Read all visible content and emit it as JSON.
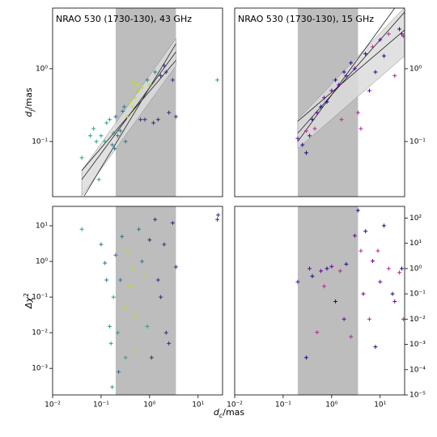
{
  "chart_data": [
    {
      "type": "scatter",
      "title": "NRAO 530 (1730-130), 43 GHz",
      "log_x": true,
      "log_y": true,
      "xlim": [
        0.01,
        32
      ],
      "ylim": [
        0.0175,
        6.8
      ],
      "yticks": [
        {
          "value": 0.1,
          "label": "10⁻¹"
        },
        {
          "value": 1,
          "label": "10⁰"
        }
      ],
      "ytick_side": "left",
      "ylabel": {
        "symbol": "d",
        "sub": "j",
        "unit": "/mas"
      },
      "shaded_x": [
        0.2,
        3.5
      ],
      "shade_color": "#bdbdbd",
      "band": {
        "x": [
          0.04,
          3.5
        ],
        "lower": [
          0.018,
          1.1
        ],
        "upper": [
          0.04,
          2.6
        ],
        "color": "#dcdcdc"
      },
      "fits": [
        {
          "x": [
            0.04,
            3.5
          ],
          "y": [
            0.04,
            1.3
          ]
        },
        {
          "x": [
            0.045,
            3.5
          ],
          "y": [
            0.018,
            2.2
          ]
        },
        {
          "x": [
            0.04,
            3.5
          ],
          "y": [
            0.03,
            1.7
          ]
        }
      ],
      "points": [
        {
          "color": "#3b2a7a",
          "x": [
            0.8,
            1.2,
            1.5,
            2.0,
            2.2,
            2.5,
            3.0,
            3.5,
            1.7,
            0.65
          ],
          "y": [
            0.2,
            0.18,
            0.2,
            1.1,
            0.9,
            0.25,
            0.7,
            0.22,
            0.8,
            0.2
          ]
        },
        {
          "color": "#2a788e",
          "x": [
            0.2,
            0.22,
            0.25,
            0.28,
            0.3,
            0.32,
            0.19,
            0.17,
            1.3,
            0.9
          ],
          "y": [
            0.22,
            0.12,
            0.14,
            0.26,
            0.3,
            0.1,
            0.08,
            0.09,
            0.9,
            0.7
          ]
        },
        {
          "color": "#22a884",
          "x": [
            0.04,
            0.06,
            0.07,
            0.08,
            0.09,
            0.1,
            0.12,
            0.13,
            0.15,
            0.18,
            25
          ],
          "y": [
            0.06,
            0.12,
            0.15,
            0.1,
            0.03,
            0.12,
            0.1,
            0.18,
            0.2,
            0.13,
            0.7
          ]
        },
        {
          "color": "#bddf26",
          "x": [
            0.35,
            0.4,
            0.45,
            0.5,
            0.55,
            0.6,
            0.7,
            1.0,
            0.45
          ],
          "y": [
            0.22,
            0.35,
            0.3,
            0.4,
            0.6,
            0.5,
            0.55,
            0.6,
            0.65
          ]
        }
      ]
    },
    {
      "type": "scatter",
      "title": "NRAO 530 (1730-130), 15 GHz",
      "log_x": true,
      "log_y": true,
      "xlim": [
        0.01,
        32
      ],
      "ylim": [
        0.0175,
        6.8
      ],
      "yticks": [
        {
          "value": 0.1,
          "label": "10⁻¹"
        },
        {
          "value": 1,
          "label": "10⁰"
        }
      ],
      "ytick_side": "right",
      "shaded_x": [
        0.2,
        3.5
      ],
      "shade_color": "#bdbdbd",
      "band": {
        "x": [
          0.2,
          32
        ],
        "lower": [
          0.08,
          1.5
        ],
        "upper": [
          0.2,
          7
        ],
        "color": "#dcdcdc"
      },
      "fits": [
        {
          "x": [
            0.2,
            32
          ],
          "y": [
            0.19,
            3.4
          ]
        },
        {
          "x": [
            0.2,
            20
          ],
          "y": [
            0.1,
            6.8
          ]
        },
        {
          "x": [
            0.2,
            32
          ],
          "y": [
            0.13,
            6
          ]
        }
      ],
      "points": [
        {
          "color": "#1b0c8a",
          "x": [
            0.25,
            0.3,
            0.4,
            0.6,
            0.8,
            1.2,
            1.8,
            2.5,
            5,
            8,
            12,
            25
          ],
          "y": [
            0.09,
            0.07,
            0.2,
            0.3,
            0.35,
            0.7,
            0.9,
            1.2,
            1.6,
            0.9,
            1.5,
            3.5
          ]
        },
        {
          "color": "#6a00a8",
          "x": [
            0.2,
            0.35,
            0.5,
            0.7,
            1.0,
            1.4,
            2.0,
            3.0,
            6,
            10,
            28
          ],
          "y": [
            0.11,
            0.12,
            0.25,
            0.4,
            0.5,
            0.6,
            0.8,
            1.0,
            0.5,
            2.5,
            3
          ]
        },
        {
          "color": "#b12a90",
          "x": [
            0.3,
            0.45,
            1.6,
            3.5,
            4,
            7,
            15,
            20,
            30
          ],
          "y": [
            0.14,
            0.15,
            0.2,
            0.25,
            0.15,
            2,
            3,
            0.8,
            2.8
          ]
        }
      ]
    },
    {
      "type": "scatter",
      "log_x": true,
      "log_y": true,
      "xlim": [
        0.01,
        32
      ],
      "ylim": [
        0.00018,
        35
      ],
      "xticks": [
        {
          "value": 0.01,
          "label": "10⁻²"
        },
        {
          "value": 0.1,
          "label": "10⁻¹"
        },
        {
          "value": 1,
          "label": "10⁰"
        },
        {
          "value": 10,
          "label": "10¹"
        }
      ],
      "yticks": [
        {
          "value": 0.001,
          "label": "10⁻³"
        },
        {
          "value": 0.01,
          "label": "10⁻²"
        },
        {
          "value": 0.1,
          "label": "10⁻¹"
        },
        {
          "value": 1,
          "label": "10⁰"
        },
        {
          "value": 10,
          "label": "10¹"
        }
      ],
      "ytick_side": "left",
      "ylabel": {
        "symbol": "Δχ",
        "sup": "2"
      },
      "xlabel": {
        "symbol": "d",
        "sub": "c",
        "unit": "/mas"
      },
      "shaded_x": [
        0.2,
        3.5
      ],
      "shade_color": "#bdbdbd",
      "points": [
        {
          "color": "#3b2a7a",
          "x": [
            1.0,
            1.1,
            1.3,
            1.5,
            1.7,
            2.0,
            2.2,
            2.5,
            3.0,
            3.5,
            25,
            26
          ],
          "y": [
            4,
            0.002,
            15,
            0.3,
            0.1,
            3,
            0.01,
            0.005,
            12,
            0.7,
            15,
            20
          ]
        },
        {
          "color": "#2a788e",
          "x": [
            0.1,
            0.12,
            0.13,
            0.2,
            0.25,
            0.27,
            0.6,
            0.7,
            0.23
          ],
          "y": [
            3,
            0.9,
            0.3,
            1.5,
            0.3,
            5,
            8,
            1,
            0.0008
          ]
        },
        {
          "color": "#22a884",
          "x": [
            0.04,
            0.15,
            0.16,
            0.17,
            0.18,
            0.22,
            0.32,
            0.9
          ],
          "y": [
            8,
            0.015,
            0.005,
            0.0003,
            0.1,
            0.01,
            0.002,
            0.015
          ]
        },
        {
          "color": "#bddf26",
          "x": [
            0.3,
            0.35,
            0.4,
            0.45,
            0.5,
            0.55,
            0.8
          ],
          "y": [
            0.05,
            2,
            0.2,
            0.6,
            0.03,
            0.003,
            0.4
          ]
        }
      ]
    },
    {
      "type": "scatter",
      "log_x": true,
      "log_y": true,
      "xlim": [
        0.01,
        32
      ],
      "ylim": [
        1e-05,
        290
      ],
      "xticks": [
        {
          "value": 0.01,
          "label": "10⁻²"
        },
        {
          "value": 0.1,
          "label": "10⁻¹"
        },
        {
          "value": 1,
          "label": "10⁰"
        },
        {
          "value": 10,
          "label": "10¹"
        }
      ],
      "yticks": [
        {
          "value": 1e-05,
          "label": "10⁻⁵"
        },
        {
          "value": 0.0001,
          "label": "10⁻⁴"
        },
        {
          "value": 0.001,
          "label": "10⁻³"
        },
        {
          "value": 0.01,
          "label": "10⁻²"
        },
        {
          "value": 0.1,
          "label": "10⁻¹"
        },
        {
          "value": 1,
          "label": "10⁰"
        },
        {
          "value": 10,
          "label": "10¹"
        },
        {
          "value": 100,
          "label": "10²"
        }
      ],
      "ytick_side": "right",
      "shaded_x": [
        0.2,
        3.5
      ],
      "shade_color": "#bdbdbd",
      "points": [
        {
          "color": "#1b0c8a",
          "x": [
            0.3,
            0.4,
            0.8,
            1.2,
            2.0,
            3.5,
            5,
            8,
            12,
            18,
            28
          ],
          "y": [
            0.0003,
            0.5,
            1,
            0.05,
            1.5,
            200,
            30,
            0.0008,
            50,
            0.1,
            1
          ]
        },
        {
          "color": "#6a00a8",
          "x": [
            0.2,
            0.35,
            0.6,
            1.0,
            1.8,
            3,
            4.5,
            7,
            10,
            20
          ],
          "y": [
            0.3,
            1,
            0.8,
            1.2,
            0.01,
            20,
            0.1,
            2,
            0.3,
            0.05
          ]
        },
        {
          "color": "#b12a90",
          "x": [
            0.5,
            0.7,
            1.5,
            2.5,
            4,
            6,
            9,
            15,
            25,
            30
          ],
          "y": [
            0.003,
            0.2,
            0.8,
            0.002,
            5,
            0.01,
            5,
            1,
            0.7,
            0.01
          ]
        }
      ]
    }
  ]
}
